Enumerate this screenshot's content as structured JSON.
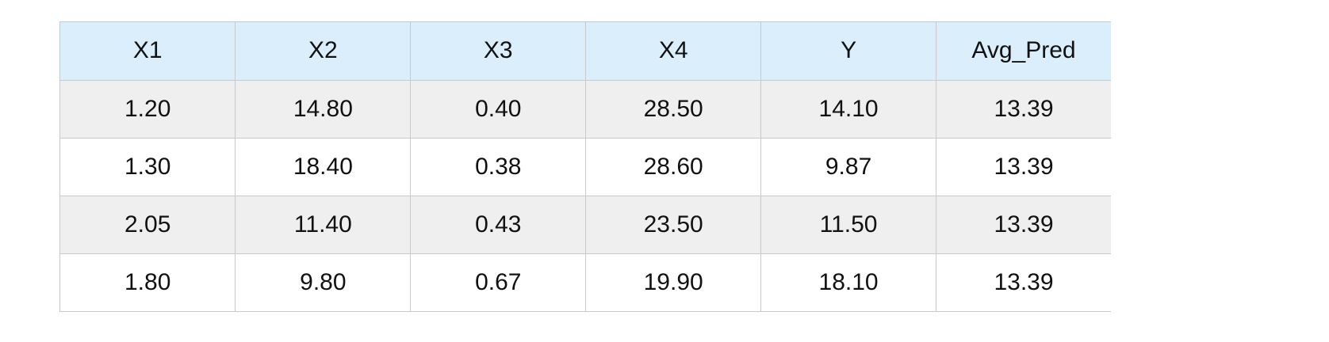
{
  "chart_data": {
    "type": "table",
    "columns": [
      "X1",
      "X2",
      "X3",
      "X4",
      "Y",
      "Avg_Pred"
    ],
    "rows": [
      [
        "1.20",
        "14.80",
        "0.40",
        "28.50",
        "14.10",
        "13.39"
      ],
      [
        "1.30",
        "18.40",
        "0.38",
        "28.60",
        "9.87",
        "13.39"
      ],
      [
        "2.05",
        "11.40",
        "0.43",
        "23.50",
        "11.50",
        "13.39"
      ],
      [
        "1.80",
        "9.80",
        "0.67",
        "19.90",
        "18.10",
        "13.39"
      ]
    ]
  },
  "colors": {
    "header_background": "#dbeefb",
    "odd_row_background": "#efefef",
    "even_row_background": "#ffffff",
    "grid_line": "#c9c9c9",
    "text": "#111111"
  }
}
